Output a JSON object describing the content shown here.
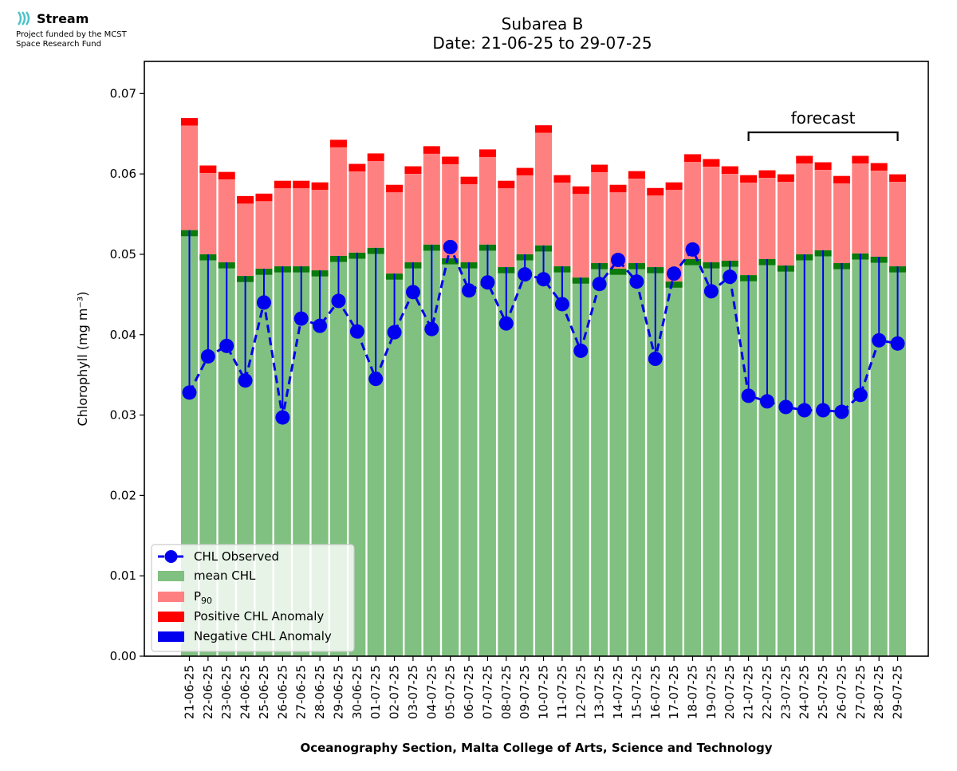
{
  "header": {
    "brand": "Stream",
    "funding_line1": "Project funded by the MCST",
    "funding_line2": "Space Research Fund",
    "brand_color": "#4fc3c8"
  },
  "chart_data": {
    "type": "bar",
    "title": "Subarea B",
    "subtitle": "Date: 21-06-25 to 29-07-25",
    "xlabel": "Oceanography Section, Malta College of Arts, Science and Technology",
    "ylabel": "Chlorophyll (mg m⁻³)",
    "ylim": [
      0,
      0.074
    ],
    "yticks": [
      0.0,
      0.01,
      0.02,
      0.03,
      0.04,
      0.05,
      0.06,
      0.07
    ],
    "ytick_labels": [
      "0.00",
      "0.01",
      "0.02",
      "0.03",
      "0.04",
      "0.05",
      "0.06",
      "0.07"
    ],
    "grid": false,
    "legend_position": "lower-left",
    "categories": [
      "21-06-25",
      "22-06-25",
      "23-06-25",
      "24-06-25",
      "25-06-25",
      "26-06-25",
      "27-06-25",
      "28-06-25",
      "29-06-25",
      "30-06-25",
      "01-07-25",
      "02-07-25",
      "03-07-25",
      "04-07-25",
      "05-07-25",
      "06-07-25",
      "07-07-25",
      "08-07-25",
      "09-07-25",
      "10-07-25",
      "11-07-25",
      "12-07-25",
      "13-07-25",
      "14-07-25",
      "15-07-25",
      "16-07-25",
      "17-07-25",
      "18-07-25",
      "19-07-25",
      "20-07-25",
      "21-07-25",
      "22-07-25",
      "23-07-25",
      "24-07-25",
      "25-07-25",
      "26-07-25",
      "27-07-25",
      "28-07-25",
      "29-07-25"
    ],
    "series": [
      {
        "name": "mean CHL",
        "color": "#80c080",
        "values": [
          0.053,
          0.05,
          0.049,
          0.0473,
          0.0482,
          0.0485,
          0.0485,
          0.048,
          0.0498,
          0.0502,
          0.0508,
          0.0476,
          0.049,
          0.0512,
          0.0495,
          0.049,
          0.0512,
          0.0484,
          0.05,
          0.0511,
          0.0485,
          0.0471,
          0.0489,
          0.0482,
          0.0489,
          0.0484,
          0.0466,
          0.0494,
          0.049,
          0.0492,
          0.0474,
          0.0494,
          0.0486,
          0.05,
          0.0505,
          0.0489,
          0.0501,
          0.0497,
          0.0485
        ]
      },
      {
        "name": "P90",
        "color": "#ff8080",
        "values": [
          0.066,
          0.0601,
          0.0593,
          0.0563,
          0.0566,
          0.0582,
          0.0582,
          0.058,
          0.0633,
          0.0603,
          0.0616,
          0.0577,
          0.06,
          0.0625,
          0.0612,
          0.0587,
          0.0621,
          0.0582,
          0.0598,
          0.0651,
          0.0589,
          0.0575,
          0.0602,
          0.0577,
          0.0594,
          0.0573,
          0.058,
          0.0615,
          0.0609,
          0.06,
          0.0589,
          0.0595,
          0.059,
          0.0613,
          0.0605,
          0.0588,
          0.0613,
          0.0604,
          0.059
        ]
      },
      {
        "name": "CHL Observed",
        "color": "#0000ee",
        "values": [
          0.0328,
          0.0373,
          0.0386,
          0.0343,
          0.044,
          0.0297,
          0.042,
          0.0411,
          0.0442,
          0.0404,
          0.0345,
          0.0403,
          0.0453,
          0.0407,
          0.0509,
          0.0455,
          0.0465,
          0.0414,
          0.0475,
          0.0469,
          0.0438,
          0.038,
          0.0463,
          0.0493,
          0.0466,
          0.037,
          0.0476,
          0.0506,
          0.0454,
          0.0472,
          0.0324,
          0.0317,
          0.031,
          0.0306,
          0.0306,
          0.0304,
          0.0325,
          0.0393,
          0.0389
        ]
      }
    ],
    "legend": {
      "observed": "CHL Observed",
      "mean": "mean CHL",
      "p90_base": "P",
      "p90_sub": "90",
      "positive": "Positive CHL Anomaly",
      "negative": "Negative CHL Anomaly"
    },
    "annotation": {
      "text": "forecast",
      "from_category": "21-07-25",
      "to_category": "29-07-25"
    },
    "colors": {
      "mean": "#80c080",
      "mean_cap": "#0a7a0a",
      "p90": "#ff8080",
      "positive": "#ff0000",
      "negative": "#0000ee"
    }
  }
}
